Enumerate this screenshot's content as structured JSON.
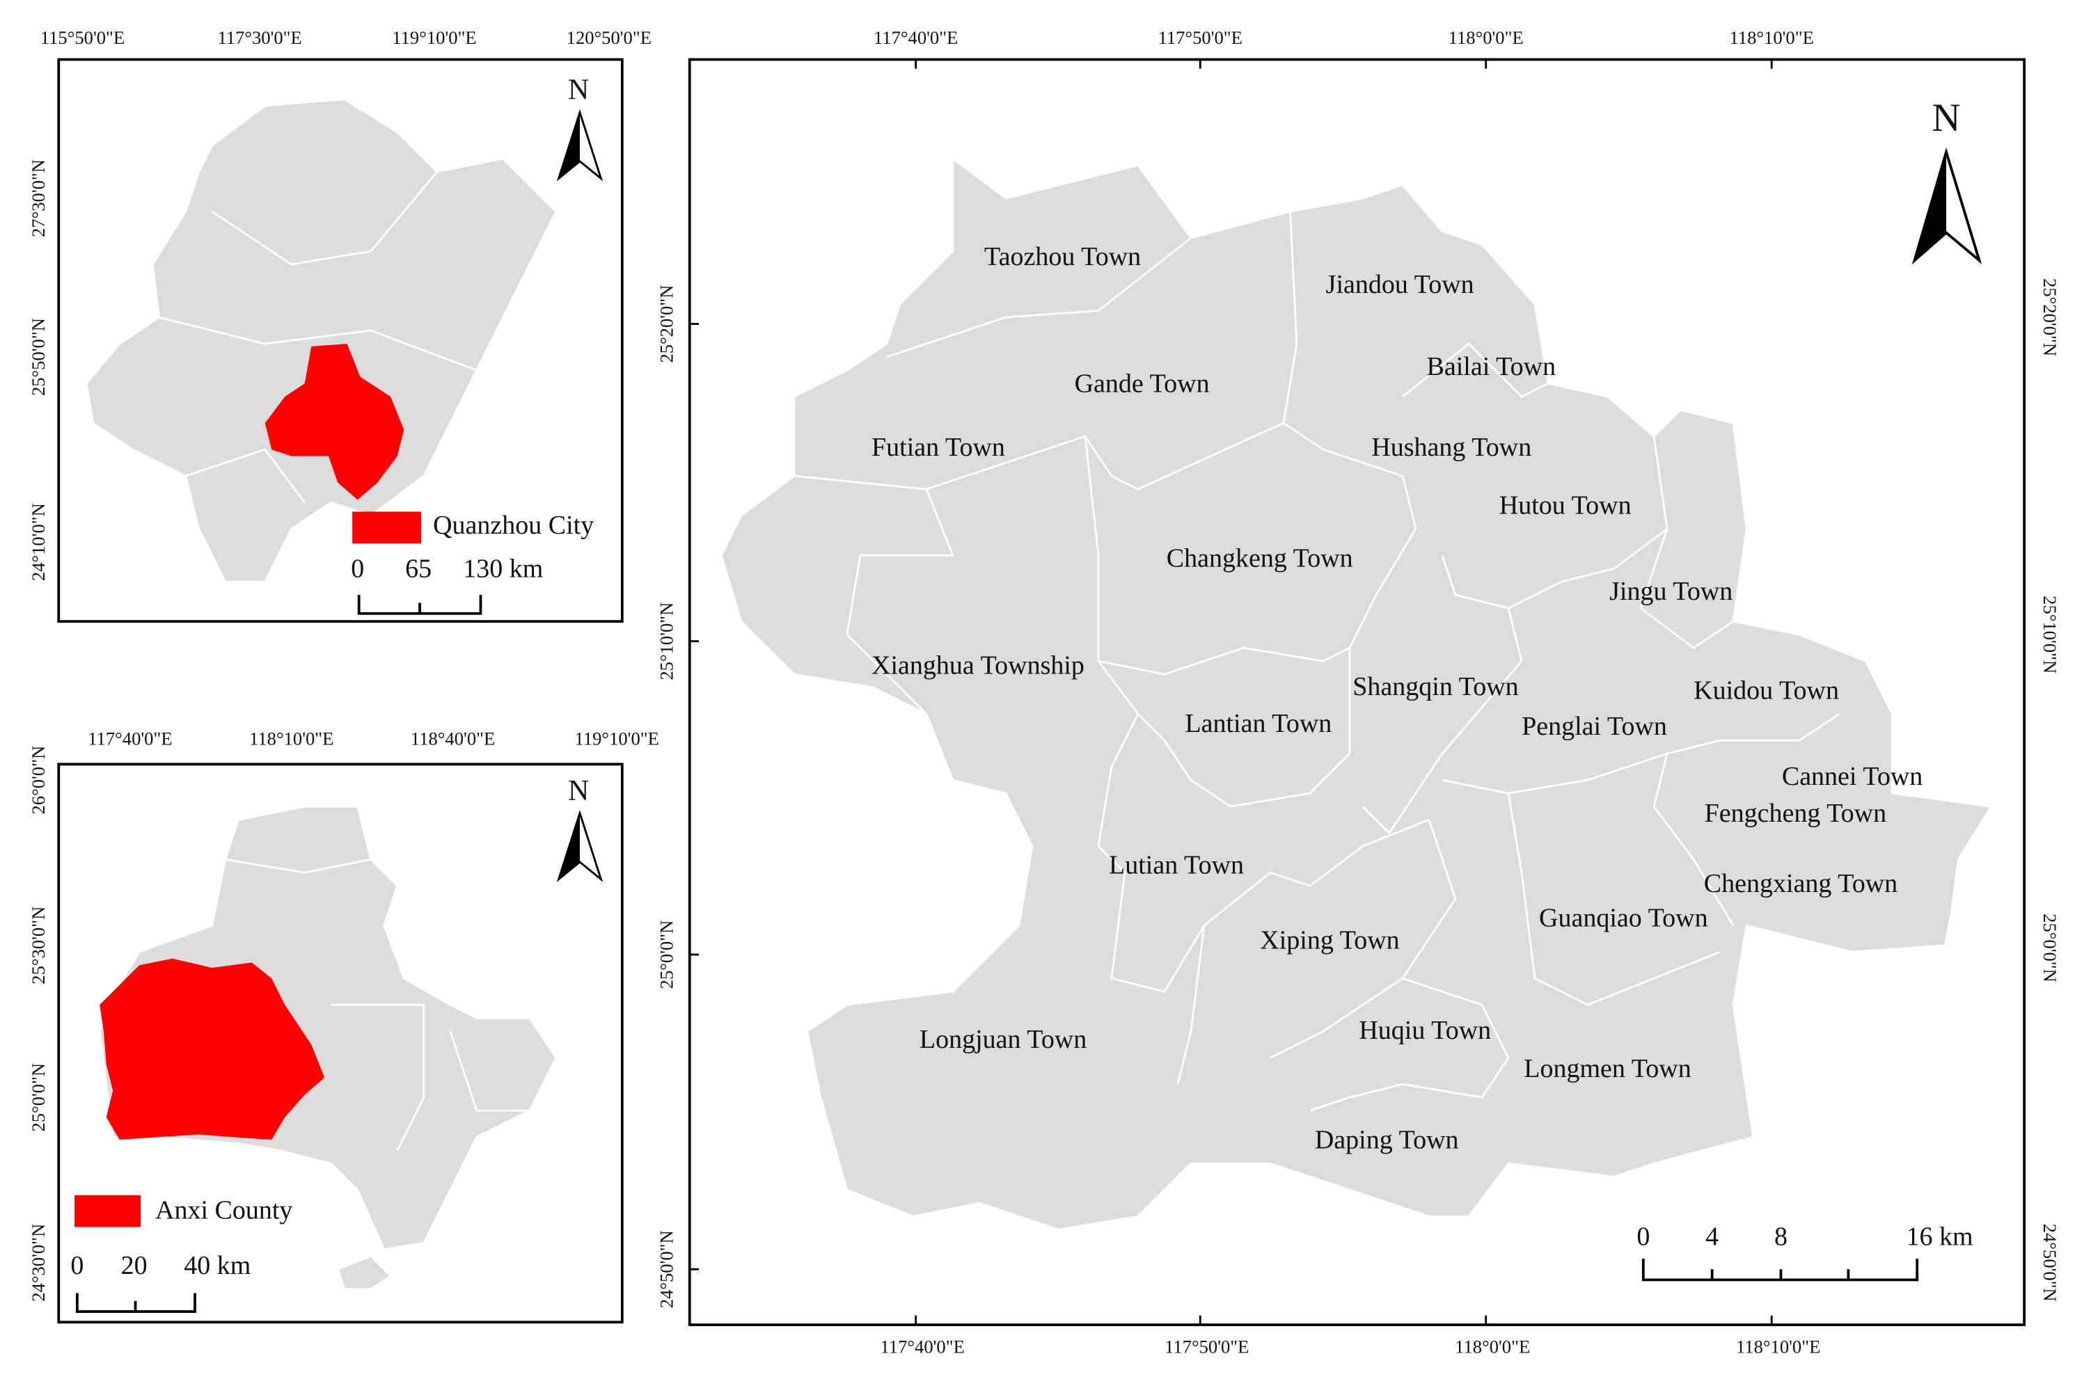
{
  "inset_fujian": {
    "north": "N",
    "top_labels": [
      "115°50'0\"E",
      "117°30'0\"E",
      "119°10'0\"E",
      "120°50'0\"E"
    ],
    "left_labels": [
      "27°30'0\"N",
      "25°50'0\"N",
      "24°10'0\"N"
    ],
    "legend": "Quanzhou City",
    "scale": [
      "0",
      "65",
      "130 km"
    ]
  },
  "inset_quanzhou": {
    "north": "N",
    "top_labels": [
      "117°40'0\"E",
      "118°10'0\"E",
      "118°40'0\"E",
      "119°10'0\"E"
    ],
    "left_labels": [
      "26°0'0\"N",
      "25°30'0\"N",
      "25°0'0\"N",
      "24°30'0\"N"
    ],
    "legend": "Anxi County",
    "scale": [
      "0",
      "20",
      "40 km"
    ]
  },
  "main_map": {
    "north": "N",
    "top_labels": [
      "117°40'0\"E",
      "117°50'0\"E",
      "118°0'0\"E",
      "118°10'0\"E"
    ],
    "bottom_labels": [
      "117°40'0\"E",
      "117°50'0\"E",
      "118°0'0\"E",
      "118°10'0\"E"
    ],
    "left_labels": [
      "25°20'0\"N",
      "25°10'0\"N",
      "25°0'0\"N",
      "24°50'0\"N"
    ],
    "right_labels": [
      "25°20'0\"N",
      "25°10'0\"N",
      "25°0'0\"N",
      "24°50'0\"N"
    ],
    "towns": [
      "Taozhou Town",
      "Jiandou Town",
      "Bailai Town",
      "Gande Town",
      "Futian Town",
      "Hushang Town",
      "Hutou Town",
      "Changkeng Town",
      "Jingu Town",
      "Xianghua Township",
      "Shangqin Town",
      "Kuidou Town",
      "Lantian Town",
      "Penglai Town",
      "Cannei Town",
      "Fengcheng Town",
      "Lutian Town",
      "Chengxiang Town",
      "Guanqiao Town",
      "Xiping Town",
      "Longjuan Town",
      "Huqiu Town",
      "Longmen Town",
      "Daping Town"
    ],
    "scale": [
      "0",
      "4",
      "8",
      "16 km"
    ]
  }
}
